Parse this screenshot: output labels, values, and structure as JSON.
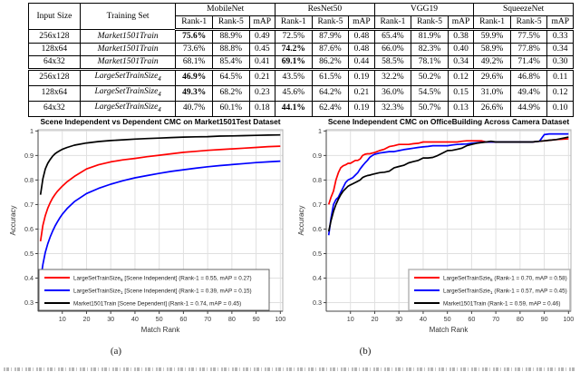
{
  "table": {
    "row_headers": [
      "Input Size",
      "Training Set"
    ],
    "col_groups": [
      "MobileNet",
      "ResNet50",
      "VGG19",
      "SqueezeNet"
    ],
    "sub_headers": [
      "Rank-1",
      "Rank-5",
      "mAP"
    ],
    "rows": [
      {
        "input_size": "256x128",
        "training_set": "Market1501Train",
        "sub": "",
        "values": [
          "75.6%",
          "88.9%",
          "0.49",
          "72.5%",
          "87.9%",
          "0.48",
          "65.4%",
          "81.9%",
          "0.38",
          "59.9%",
          "77.5%",
          "0.33"
        ],
        "bold": [
          0
        ],
        "group_start": false
      },
      {
        "input_size": "128x64",
        "training_set": "Market1501Train",
        "sub": "",
        "values": [
          "73.6%",
          "88.8%",
          "0.45",
          "74.2%",
          "87.6%",
          "0.48",
          "66.0%",
          "82.3%",
          "0.40",
          "58.9%",
          "77.8%",
          "0.34"
        ],
        "bold": [
          3
        ],
        "group_start": false
      },
      {
        "input_size": "64x32",
        "training_set": "Market1501Train",
        "sub": "",
        "values": [
          "68.1%",
          "85.4%",
          "0.41",
          "69.1%",
          "86.2%",
          "0.44",
          "58.5%",
          "78.1%",
          "0.34",
          "49.2%",
          "71.4%",
          "0.30"
        ],
        "bold": [
          3
        ],
        "group_start": false
      },
      {
        "input_size": "256x128",
        "training_set": "LargeSetTrainSize",
        "sub": "4",
        "values": [
          "46.9%",
          "64.5%",
          "0.21",
          "43.5%",
          "61.5%",
          "0.19",
          "32.2%",
          "50.2%",
          "0.12",
          "29.6%",
          "46.8%",
          "0.11"
        ],
        "bold": [
          0
        ],
        "group_start": true
      },
      {
        "input_size": "128x64",
        "training_set": "LargeSetTrainSize",
        "sub": "4",
        "values": [
          "49.3%",
          "68.2%",
          "0.23",
          "45.6%",
          "64.2%",
          "0.21",
          "36.0%",
          "54.5%",
          "0.15",
          "31.0%",
          "49.4%",
          "0.12"
        ],
        "bold": [
          0
        ],
        "group_start": false
      },
      {
        "input_size": "64x32",
        "training_set": "LargeSetTrainSize",
        "sub": "4",
        "values": [
          "40.7%",
          "60.1%",
          "0.18",
          "44.1%",
          "62.4%",
          "0.19",
          "32.3%",
          "50.7%",
          "0.13",
          "26.6%",
          "44.9%",
          "0.10"
        ],
        "bold": [
          3
        ],
        "group_start": false
      }
    ]
  },
  "labels": {
    "a": "(a)",
    "b": "(b)"
  },
  "colors": {
    "red": "#ff0000",
    "blue": "#0000ff",
    "black": "#000000",
    "grid": "#e0e0e0",
    "axis": "#444444",
    "box": "#b0b0b0"
  },
  "chart_data": [
    {
      "type": "line",
      "title": "Scene Independent vs Dependent CMC on Market1501Test Dataset",
      "xlabel": "Match Rank",
      "ylabel": "Accuracy",
      "xlim": [
        0,
        101
      ],
      "ylim": [
        0.265,
        1.005
      ],
      "xticks": [
        10,
        20,
        30,
        40,
        50,
        60,
        70,
        80,
        90,
        100
      ],
      "yticks": [
        0.3,
        0.4,
        0.5,
        0.6,
        0.7,
        0.8,
        0.9,
        1
      ],
      "grid": true,
      "legend_position": "bottom-left",
      "series": [
        {
          "name_main": "LargeSetTrainSize",
          "name_sub": "6",
          "name_rest": " [Scene Independent] (Rank-1 = 0.55, mAP = 0.27)",
          "color": "#ff0000",
          "x": [
            1,
            2,
            3,
            4,
            5,
            6,
            7,
            8,
            9,
            10,
            12,
            15,
            20,
            25,
            30,
            35,
            40,
            45,
            50,
            55,
            60,
            65,
            70,
            75,
            80,
            85,
            90,
            95,
            100
          ],
          "y": [
            0.55,
            0.615,
            0.655,
            0.685,
            0.708,
            0.726,
            0.741,
            0.754,
            0.765,
            0.775,
            0.793,
            0.815,
            0.845,
            0.862,
            0.874,
            0.882,
            0.888,
            0.895,
            0.901,
            0.907,
            0.913,
            0.917,
            0.921,
            0.924,
            0.927,
            0.93,
            0.933,
            0.936,
            0.938
          ]
        },
        {
          "name_main": "LargeSetTrainSize",
          "name_sub": "1",
          "name_rest": " [Scene Independent] (Rank-1 = 0.39, mAP = 0.15)",
          "color": "#0000ff",
          "x": [
            1,
            2,
            3,
            4,
            5,
            6,
            7,
            8,
            9,
            10,
            12,
            15,
            20,
            25,
            30,
            35,
            40,
            45,
            50,
            55,
            60,
            65,
            70,
            75,
            80,
            85,
            90,
            95,
            100
          ],
          "y": [
            0.39,
            0.455,
            0.505,
            0.54,
            0.568,
            0.591,
            0.612,
            0.63,
            0.646,
            0.66,
            0.684,
            0.712,
            0.745,
            0.766,
            0.783,
            0.797,
            0.809,
            0.818,
            0.827,
            0.835,
            0.842,
            0.848,
            0.854,
            0.859,
            0.863,
            0.867,
            0.871,
            0.874,
            0.877
          ]
        },
        {
          "name_main": "Market1501Train",
          "name_sub": "",
          "name_rest": " [Scene Dependent] (Rank-1 = 0.74, mAP = 0.45)",
          "color": "#000000",
          "x": [
            1,
            2,
            3,
            4,
            5,
            6,
            7,
            8,
            9,
            10,
            12,
            15,
            20,
            25,
            30,
            35,
            40,
            45,
            50,
            55,
            60,
            65,
            70,
            75,
            80,
            85,
            90,
            95,
            100
          ],
          "y": [
            0.74,
            0.805,
            0.845,
            0.868,
            0.884,
            0.897,
            0.907,
            0.914,
            0.92,
            0.925,
            0.933,
            0.942,
            0.951,
            0.957,
            0.961,
            0.964,
            0.967,
            0.969,
            0.971,
            0.973,
            0.975,
            0.976,
            0.977,
            0.979,
            0.98,
            0.981,
            0.982,
            0.983,
            0.984
          ]
        }
      ]
    },
    {
      "type": "line",
      "title": "Scene Independent CMC on OfficeBuilding Across Camera Dataset",
      "xlabel": "Match Rank",
      "ylabel": "Accuracy",
      "xlim": [
        0,
        101
      ],
      "ylim": [
        0.265,
        1.005
      ],
      "xticks": [
        10,
        20,
        30,
        40,
        50,
        60,
        70,
        80,
        90,
        100
      ],
      "yticks": [
        0.3,
        0.4,
        0.5,
        0.6,
        0.7,
        0.8,
        0.9,
        1
      ],
      "grid": true,
      "legend_position": "bottom-right",
      "series": [
        {
          "name_main": "LargeSetTrainSzie",
          "name_sub": "6",
          "name_rest": " (Rank-1 = 0.70, mAP = 0.58)",
          "color": "#ff0000",
          "x": [
            1,
            2,
            3,
            4,
            5,
            6,
            7,
            8,
            9,
            10,
            11,
            12,
            13,
            14,
            15,
            16,
            17,
            18,
            19,
            20,
            22,
            24,
            26,
            28,
            30,
            32,
            34,
            36,
            38,
            40,
            42,
            44,
            46,
            48,
            50,
            52,
            54,
            56,
            58,
            60,
            62,
            64,
            66,
            68,
            70,
            75,
            80,
            85,
            88,
            90,
            92,
            95,
            100
          ],
          "y": [
            0.7,
            0.73,
            0.755,
            0.8,
            0.83,
            0.85,
            0.858,
            0.862,
            0.868,
            0.868,
            0.874,
            0.88,
            0.88,
            0.886,
            0.9,
            0.905,
            0.907,
            0.907,
            0.91,
            0.912,
            0.92,
            0.926,
            0.936,
            0.94,
            0.945,
            0.945,
            0.945,
            0.948,
            0.95,
            0.955,
            0.955,
            0.955,
            0.955,
            0.955,
            0.955,
            0.955,
            0.955,
            0.958,
            0.96,
            0.96,
            0.96,
            0.96,
            0.955,
            0.955,
            0.955,
            0.955,
            0.955,
            0.955,
            0.958,
            0.96,
            0.962,
            0.965,
            0.968
          ]
        },
        {
          "name_main": "LargeSetTrainSzie",
          "name_sub": "1",
          "name_rest": " (Rank-1 = 0.57, mAP = 0.45)",
          "color": "#0000ff",
          "x": [
            1,
            2,
            3,
            4,
            5,
            6,
            7,
            8,
            9,
            10,
            11,
            12,
            13,
            14,
            15,
            16,
            17,
            18,
            19,
            20,
            22,
            24,
            26,
            28,
            30,
            32,
            34,
            36,
            38,
            40,
            42,
            44,
            46,
            48,
            50,
            52,
            54,
            56,
            58,
            60,
            62,
            64,
            66,
            68,
            70,
            75,
            80,
            85,
            88,
            90,
            92,
            95,
            100
          ],
          "y": [
            0.575,
            0.645,
            0.7,
            0.72,
            0.73,
            0.75,
            0.77,
            0.79,
            0.8,
            0.805,
            0.81,
            0.82,
            0.83,
            0.845,
            0.858,
            0.87,
            0.88,
            0.893,
            0.9,
            0.905,
            0.91,
            0.913,
            0.916,
            0.916,
            0.92,
            0.924,
            0.927,
            0.93,
            0.933,
            0.935,
            0.937,
            0.94,
            0.94,
            0.94,
            0.94,
            0.943,
            0.945,
            0.946,
            0.947,
            0.95,
            0.952,
            0.954,
            0.955,
            0.955,
            0.955,
            0.955,
            0.955,
            0.955,
            0.958,
            0.985,
            0.988,
            0.988,
            0.988
          ]
        },
        {
          "name_main": "Market1501Train",
          "name_sub": "",
          "name_rest": " (Rank-1 = 0.59, mAP = 0.46)",
          "color": "#000000",
          "x": [
            1,
            2,
            3,
            4,
            5,
            6,
            7,
            8,
            9,
            10,
            11,
            12,
            13,
            14,
            15,
            16,
            17,
            18,
            19,
            20,
            22,
            24,
            26,
            28,
            30,
            32,
            34,
            36,
            38,
            40,
            42,
            44,
            46,
            48,
            50,
            52,
            54,
            56,
            58,
            60,
            62,
            64,
            66,
            68,
            70,
            75,
            80,
            85,
            88,
            90,
            92,
            95,
            100
          ],
          "y": [
            0.59,
            0.635,
            0.672,
            0.7,
            0.722,
            0.74,
            0.755,
            0.765,
            0.775,
            0.78,
            0.785,
            0.79,
            0.795,
            0.8,
            0.81,
            0.815,
            0.818,
            0.82,
            0.823,
            0.825,
            0.83,
            0.832,
            0.836,
            0.85,
            0.855,
            0.86,
            0.87,
            0.875,
            0.88,
            0.89,
            0.89,
            0.892,
            0.9,
            0.91,
            0.92,
            0.921,
            0.925,
            0.93,
            0.94,
            0.945,
            0.95,
            0.953,
            0.955,
            0.958,
            0.955,
            0.955,
            0.955,
            0.955,
            0.958,
            0.96,
            0.962,
            0.965,
            0.975
          ]
        }
      ]
    }
  ]
}
